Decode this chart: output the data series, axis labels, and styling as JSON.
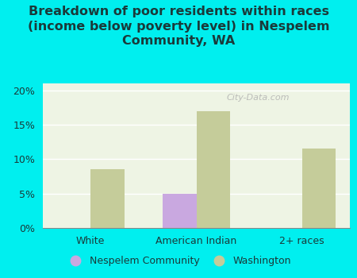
{
  "categories": [
    "White",
    "American Indian",
    "2+ races"
  ],
  "nespelem_values": [
    0,
    5.0,
    0
  ],
  "washington_values": [
    8.5,
    17.0,
    11.5
  ],
  "nespelem_color": "#c9a8e0",
  "washington_color": "#c5cc9a",
  "background_color": "#00efef",
  "plot_bg_color": "#eef4e4",
  "title": "Breakdown of poor residents within races\n(income below poverty level) in Nespelem\nCommunity, WA",
  "title_fontsize": 11.5,
  "title_fontweight": "bold",
  "title_color": "#1a3a3a",
  "ylim": [
    0,
    21
  ],
  "yticks": [
    0,
    5,
    10,
    15,
    20
  ],
  "ytick_labels": [
    "0%",
    "5%",
    "10%",
    "15%",
    "20%"
  ],
  "legend_labels": [
    "Nespelem Community",
    "Washington"
  ],
  "bar_width": 0.32,
  "watermark": "City-Data.com"
}
